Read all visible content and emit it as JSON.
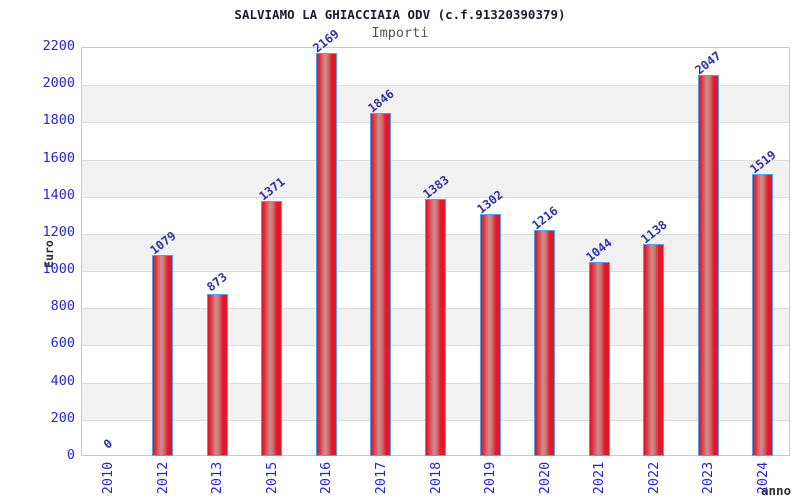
{
  "chart_data": {
    "type": "bar",
    "title": "SALVIAMO LA GHIACCIAIA ODV (c.f.91320390379)",
    "subtitle": "Importi",
    "xlabel": "anno",
    "ylabel": "Euro",
    "categories": [
      "2010",
      "2012",
      "2013",
      "2015",
      "2016",
      "2017",
      "2018",
      "2019",
      "2020",
      "2021",
      "2022",
      "2023",
      "2024"
    ],
    "values": [
      0,
      1079,
      873,
      1371,
      2169,
      1846,
      1383,
      1302,
      1216,
      1044,
      1138,
      2047,
      1519
    ],
    "ylim": [
      0,
      2200
    ],
    "ytick_step": 200,
    "yticks": [
      0,
      200,
      400,
      600,
      800,
      1000,
      1200,
      1400,
      1600,
      1800,
      2000,
      2200
    ],
    "grid": true,
    "legend_position": "none",
    "value_labels_shown": true,
    "colors": {
      "title": "#1c1c30",
      "subtitle": "#555555",
      "tick_label": "#2727cf",
      "value_label": "#3333a0",
      "axis_name": "#303030",
      "band": "#f1f1f1",
      "gridline": "#dcdcdc",
      "plot_border": "#c9c9c9",
      "bar_border": "#4da3e8",
      "bar_fill_edge": "#e2182a",
      "bar_fill_center": "#c99090"
    }
  }
}
